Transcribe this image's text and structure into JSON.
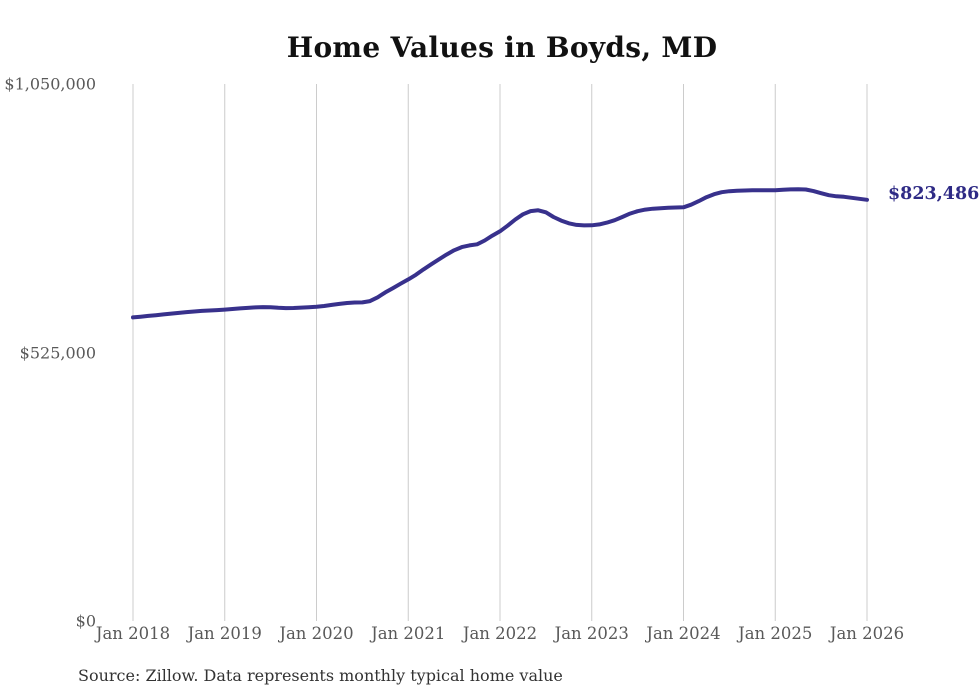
{
  "title": "Home Values in Boyds, MD",
  "source_note": "Source: Zillow. Data represents monthly typical home value",
  "end_label": "$823,486",
  "colors": {
    "line": "#38318c",
    "end_label": "#2e2a85",
    "grid": "#cccccc",
    "axis_text": "#595959",
    "title_text": "#111111",
    "source_text": "#333333"
  },
  "chart_data": {
    "type": "line",
    "title": "Home Values in Boyds, MD",
    "xlabel": "",
    "ylabel": "",
    "x_start": "Jan 2018",
    "x_end": "Jan 2026",
    "points_per_year": 12,
    "x_ticks": [
      "Jan 2018",
      "Jan 2019",
      "Jan 2020",
      "Jan 2021",
      "Jan 2022",
      "Jan 2023",
      "Jan 2024",
      "Jan 2025",
      "Jan 2026"
    ],
    "y_ticks": [
      {
        "label": "$0",
        "value": 0
      },
      {
        "label": "$525,000",
        "value": 525000
      },
      {
        "label": "$1,050,000",
        "value": 1050000
      }
    ],
    "ylim": [
      0,
      1050000
    ],
    "grid": "vertical-only",
    "legend": "none",
    "annotation": {
      "text": "$823,486",
      "position": "right-of-last-point"
    },
    "series": [
      {
        "name": "Monthly typical home value",
        "values": [
          593600,
          595000,
          596500,
          598000,
          599500,
          601000,
          602500,
          604000,
          605200,
          606300,
          607200,
          608000,
          608800,
          610000,
          611300,
          612300,
          613200,
          613800,
          613500,
          612500,
          611800,
          612000,
          612800,
          613500,
          614300,
          616000,
          618000,
          620000,
          621800,
          622800,
          623000,
          625500,
          633000,
          642500,
          651000,
          659500,
          668000,
          677000,
          687500,
          697400,
          707000,
          716500,
          724800,
          731000,
          734500,
          736600,
          744000,
          753500,
          762000,
          773000,
          785000,
          795300,
          801500,
          803100,
          799200,
          790000,
          783000,
          777700,
          774500,
          773500,
          773800,
          775500,
          779000,
          783600,
          790000,
          796500,
          801200,
          804500,
          806200,
          807100,
          808000,
          808500,
          809000,
          814000,
          821000,
          828600,
          834500,
          838500,
          840400,
          841200,
          841800,
          842100,
          842300,
          842400,
          842400,
          843300,
          844000,
          844300,
          843800,
          840500,
          836500,
          832500,
          830500,
          829500,
          827500,
          825500,
          823486
        ]
      }
    ]
  }
}
